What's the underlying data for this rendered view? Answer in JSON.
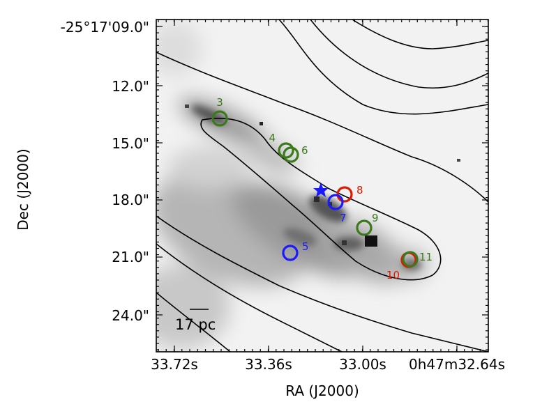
{
  "chart_data": {
    "type": "scatter",
    "title": "",
    "xlabel": "RA (J2000)",
    "ylabel": "Dec (J2000)",
    "x_tick_labels": [
      "33.72s",
      "33.36s",
      "33.00s",
      "0h47m32.64s"
    ],
    "y_tick_labels": [
      "-25°17'09.0\"",
      "12.0\"",
      "15.0\"",
      "18.0\"",
      "21.0\"",
      "24.0\""
    ],
    "scale_bar_label": "17 pc",
    "background": "greyscale image with black contours",
    "star_marker_color": "#1a1aff",
    "sources": [
      {
        "label": "3",
        "color": "#3a7a1a"
      },
      {
        "label": "4",
        "color": "#3a7a1a"
      },
      {
        "label": "6",
        "color": "#3a7a1a"
      },
      {
        "label": "8",
        "color": "#dd1a00"
      },
      {
        "label": "7",
        "color": "#1a1aff"
      },
      {
        "label": "9",
        "color": "#3a7a1a"
      },
      {
        "label": "5",
        "color": "#1a1aff"
      },
      {
        "label": "10",
        "color": "#dd1a00"
      },
      {
        "label": "11",
        "color": "#3a7a1a"
      }
    ]
  }
}
